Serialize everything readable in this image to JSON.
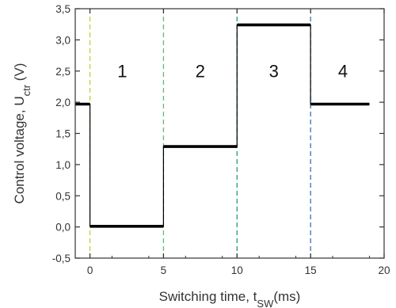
{
  "chart_data": {
    "type": "line",
    "title": "",
    "xlabel": {
      "main": "Switching time, t",
      "sub": "SW",
      "unit": "(ms)"
    },
    "ylabel": {
      "main": "Control voltage, U",
      "sub": "ctr",
      "unit": " (V)"
    },
    "xlim": [
      -1,
      20
    ],
    "ylim": [
      -0.5,
      3.5
    ],
    "xticks": [
      {
        "value": 0,
        "label": "0"
      },
      {
        "value": 5,
        "label": "5"
      },
      {
        "value": 10,
        "label": "10"
      },
      {
        "value": 15,
        "label": "15"
      },
      {
        "value": 20,
        "label": "20"
      }
    ],
    "yticks": [
      {
        "value": -0.5,
        "label": "-0,5"
      },
      {
        "value": 0.0,
        "label": "0,0"
      },
      {
        "value": 0.5,
        "label": "0,5"
      },
      {
        "value": 1.0,
        "label": "1,0"
      },
      {
        "value": 1.5,
        "label": "1,5"
      },
      {
        "value": 2.0,
        "label": "2,0"
      },
      {
        "value": 2.5,
        "label": "2,5"
      },
      {
        "value": 3.0,
        "label": "3,0"
      },
      {
        "value": 3.5,
        "label": "3,5"
      }
    ],
    "grid": false,
    "series": [
      {
        "color": "#000000",
        "x": [
          -1,
          0,
          0,
          5,
          5,
          10,
          10,
          15,
          15,
          19
        ],
        "y": [
          1.97,
          1.97,
          0.01,
          0.01,
          1.29,
          1.29,
          3.24,
          3.24,
          1.97,
          1.97
        ]
      }
    ],
    "vlines": [
      {
        "x": 0,
        "color": "#b8d432"
      },
      {
        "x": 5,
        "color": "#5cc06c"
      },
      {
        "x": 10,
        "color": "#1f9a82"
      },
      {
        "x": 15,
        "color": "#3a6fb0"
      }
    ],
    "annotations": [
      {
        "text": "1",
        "x": 2.2,
        "y": 2.4
      },
      {
        "text": "2",
        "x": 7.5,
        "y": 2.4
      },
      {
        "text": "3",
        "x": 12.5,
        "y": 2.4
      },
      {
        "text": "4",
        "x": 17.2,
        "y": 2.4
      }
    ]
  }
}
